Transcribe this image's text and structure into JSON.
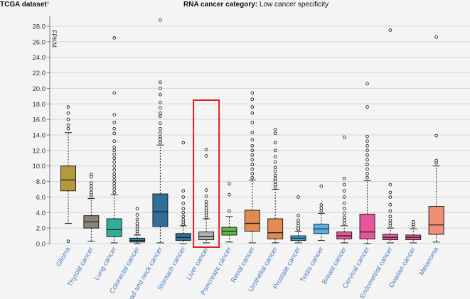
{
  "header": {
    "dataset": "TCGA dataset",
    "dataset_suffix": "i",
    "category_label": "RNA cancer category:",
    "category_value": "Low cancer specificity"
  },
  "chart_data": {
    "type": "box",
    "title": "RNA cancer category: Low cancer specificity",
    "ylabel": "FPKM",
    "ylim": [
      0,
      29
    ],
    "yticks": [
      0.0,
      2.0,
      4.0,
      6.0,
      8.0,
      10.0,
      12.0,
      14.0,
      16.0,
      18.0,
      20.0,
      22.0,
      24.0,
      26.0,
      28.0
    ],
    "highlighted": "Liver cancer",
    "categories": [
      {
        "name": "Glioma",
        "color": "#b39a3c",
        "whisker_low": 2.6,
        "q1": 6.8,
        "median": 8.2,
        "q3": 10.0,
        "whisker_high": 14.3,
        "outliers": [
          0.3,
          14.8,
          15.3,
          16.0,
          16.8,
          17.6
        ]
      },
      {
        "name": "Thyroid cancer",
        "color": "#8a8378",
        "whisker_low": 0.3,
        "q1": 2.0,
        "median": 2.8,
        "q3": 3.6,
        "whisker_high": 5.8,
        "outliers": [
          6.0,
          6.3,
          6.6,
          7.0,
          7.4,
          7.8,
          8.6,
          8.9
        ]
      },
      {
        "name": "Lung cancer",
        "color": "#2fae98",
        "whisker_low": 0.1,
        "q1": 0.9,
        "median": 1.8,
        "q3": 3.2,
        "whisker_high": 6.3,
        "outliers": [
          6.6,
          7.0,
          7.4,
          7.8,
          8.2,
          8.6,
          9.0,
          9.5,
          10.0,
          10.5,
          11.0,
          11.5,
          12.0,
          12.4,
          13.2,
          14.2,
          14.8,
          15.6,
          16.6,
          19.4,
          26.5
        ]
      },
      {
        "name": "Colorectal cancer",
        "color": "#2e7ca0",
        "whisker_low": 0.0,
        "q1": 0.2,
        "median": 0.4,
        "q3": 0.7,
        "whisker_high": 1.1,
        "outliers": [
          1.3,
          1.6,
          1.9,
          2.2,
          2.6,
          3.1,
          3.7,
          4.5
        ]
      },
      {
        "name": "Head and neck cancer",
        "color": "#2e6f99",
        "whisker_low": 0.1,
        "q1": 2.2,
        "median": 4.1,
        "q3": 6.4,
        "whisker_high": 12.7,
        "outliers": [
          13.0,
          13.4,
          13.8,
          14.3,
          14.8,
          15.5,
          16.4,
          16.8,
          17.5,
          18.2,
          19.2,
          20.0,
          20.8,
          28.8
        ]
      },
      {
        "name": "Stomach cancer",
        "color": "#2e6f99",
        "whisker_low": 0.0,
        "q1": 0.4,
        "median": 0.8,
        "q3": 1.3,
        "whisker_high": 2.3,
        "outliers": [
          2.5,
          2.8,
          3.1,
          3.5,
          4.0,
          4.5,
          5.2,
          6.0,
          6.8,
          13.0
        ]
      },
      {
        "name": "Liver cancer",
        "color": "#b3b3b3",
        "whisker_low": 0.1,
        "q1": 0.5,
        "median": 0.9,
        "q3": 1.5,
        "whisker_high": 3.2,
        "outliers": [
          3.4,
          3.7,
          4.0,
          4.3,
          4.6,
          5.0,
          5.4,
          6.1,
          6.9,
          11.3,
          12.1
        ]
      },
      {
        "name": "Pancreatic cancer",
        "color": "#5fb848",
        "whisker_low": 0.2,
        "q1": 1.1,
        "median": 1.6,
        "q3": 2.1,
        "whisker_high": 3.5,
        "outliers": [
          4.2,
          6.3,
          7.7
        ]
      },
      {
        "name": "Renal cancer",
        "color": "#e38a52",
        "whisker_low": 0.1,
        "q1": 1.6,
        "median": 2.6,
        "q3": 4.3,
        "whisker_high": 8.2,
        "outliers": [
          8.5,
          9.0,
          9.6,
          10.2,
          10.8,
          11.4,
          12.0,
          12.6,
          13.4,
          14.3,
          15.6,
          16.8,
          17.6,
          18.6,
          19.4
        ]
      },
      {
        "name": "Urothelial cancer",
        "color": "#e38a52",
        "whisker_low": 0.1,
        "q1": 0.6,
        "median": 1.4,
        "q3": 3.2,
        "whisker_high": 7.0,
        "outliers": [
          7.3,
          7.6,
          8.0,
          8.4,
          8.8,
          9.3,
          9.8,
          10.5,
          11.2,
          12.0,
          13.0,
          14.2,
          14.7
        ]
      },
      {
        "name": "Prostate cancer",
        "color": "#3fa0d2",
        "whisker_low": 0.1,
        "q1": 0.4,
        "median": 0.7,
        "q3": 1.0,
        "whisker_high": 1.6,
        "outliers": [
          1.8,
          2.0,
          2.3,
          2.6,
          3.0,
          3.6,
          6.0
        ]
      },
      {
        "name": "Testis cancer",
        "color": "#5aaee0",
        "whisker_low": 0.4,
        "q1": 1.3,
        "median": 1.9,
        "q3": 2.5,
        "whisker_high": 3.9,
        "outliers": [
          4.2,
          4.6,
          5.0,
          7.4
        ]
      },
      {
        "name": "Breast cancer",
        "color": "#e8559a",
        "whisker_low": 0.1,
        "q1": 0.6,
        "median": 1.0,
        "q3": 1.5,
        "whisker_high": 2.3,
        "outliers": [
          2.6,
          3.0,
          3.4,
          3.9,
          4.5,
          5.2,
          6.0,
          6.8,
          7.6,
          8.4,
          13.7
        ]
      },
      {
        "name": "Cervical cancer",
        "color": "#e8559a",
        "whisker_low": 0.0,
        "q1": 0.6,
        "median": 1.5,
        "q3": 3.8,
        "whisker_high": 8.1,
        "outliers": [
          8.5,
          9.0,
          9.6,
          10.2,
          10.8,
          11.4,
          12.0,
          12.6,
          13.2,
          13.8,
          17.6,
          20.6
        ]
      },
      {
        "name": "Endometrial cancer",
        "color": "#e8559a",
        "whisker_low": 0.1,
        "q1": 0.5,
        "median": 0.8,
        "q3": 1.2,
        "whisker_high": 2.0,
        "outliers": [
          2.3,
          2.6,
          3.0,
          3.5,
          4.2,
          5.0,
          6.0,
          6.6,
          7.6,
          27.5
        ]
      },
      {
        "name": "Ovarian cancer",
        "color": "#e8559a",
        "whisker_low": 0.1,
        "q1": 0.5,
        "median": 0.8,
        "q3": 1.1,
        "whisker_high": 1.9,
        "outliers": [
          2.2,
          2.5,
          2.8
        ]
      },
      {
        "name": "Melanoma",
        "color": "#f08f78",
        "whisker_low": 0.2,
        "q1": 1.2,
        "median": 2.4,
        "q3": 4.8,
        "whisker_high": 10.0,
        "outliers": [
          10.4,
          10.7,
          13.9,
          26.6
        ]
      }
    ]
  }
}
